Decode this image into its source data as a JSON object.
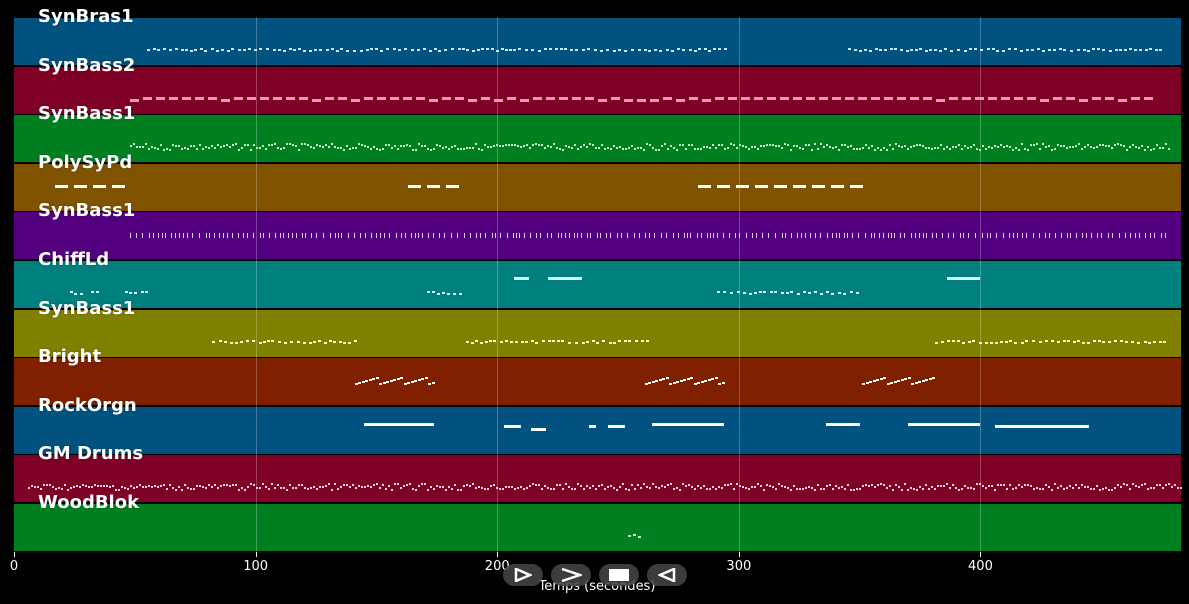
{
  "window": {
    "background": "#000000"
  },
  "axis": {
    "xlabel": "Temps (secondes)",
    "xlim": [
      0,
      483
    ],
    "ticks": [
      {
        "value": 0,
        "label": "0"
      },
      {
        "value": 100,
        "label": "100"
      },
      {
        "value": 200,
        "label": "200"
      },
      {
        "value": 300,
        "label": "300"
      },
      {
        "value": 400,
        "label": "400"
      }
    ]
  },
  "controls": [
    {
      "name": "play-icon",
      "label": "play"
    },
    {
      "name": "forward-icon",
      "label": "forward"
    },
    {
      "name": "stop-icon",
      "label": "stop"
    },
    {
      "name": "rewind-icon",
      "label": "rewind"
    }
  ],
  "tracks": [
    {
      "name": "SynBras1",
      "color": "#01527f",
      "note_color": "#c8e6ff",
      "segments": [
        [
          55,
          295,
          "dots"
        ],
        [
          345,
          475,
          "dots"
        ]
      ]
    },
    {
      "name": "SynBass2",
      "color": "#7f0026",
      "note_color": "#e89ab0",
      "segments": [
        [
          48,
          470,
          "dashes"
        ]
      ]
    },
    {
      "name": "SynBass1",
      "color": "#007f21",
      "note_color": "#c8f0c8",
      "segments": [
        [
          48,
          478,
          "dense"
        ]
      ]
    },
    {
      "name": "PolySyPd",
      "color": "#7f5300",
      "note_color": "#ffffff",
      "segments": [
        [
          17,
          47,
          "dashes-bold"
        ],
        [
          163,
          185,
          "dashes-bold"
        ],
        [
          283,
          350,
          "dashes-bold"
        ]
      ]
    },
    {
      "name": "SynBass1",
      "color": "#52007f",
      "note_color": "#e6ccff",
      "segments": [
        [
          48,
          478,
          "ticks"
        ]
      ]
    },
    {
      "name": "ChiffLd",
      "color": "#007f7f",
      "note_color": "#d0ffff",
      "segments": [
        [
          23,
          28,
          "dots"
        ],
        [
          32,
          36,
          "dots"
        ],
        [
          46,
          55,
          "dots"
        ],
        [
          171,
          186,
          "dots"
        ],
        [
          207,
          213,
          "bar"
        ],
        [
          221,
          235,
          "bar"
        ],
        [
          291,
          351,
          "dots"
        ],
        [
          386,
          400,
          "bar"
        ]
      ]
    },
    {
      "name": "SynBass1",
      "color": "#7f7f00",
      "note_color": "#fff8c0",
      "segments": [
        [
          82,
          141,
          "dots"
        ],
        [
          187,
          262,
          "dots"
        ],
        [
          381,
          476,
          "dots"
        ]
      ]
    },
    {
      "name": "Bright",
      "color": "#7f2100",
      "note_color": "#ffffff",
      "segments": [
        [
          141,
          174,
          "stairs"
        ],
        [
          261,
          293,
          "stairs"
        ],
        [
          351,
          381,
          "stairs"
        ]
      ]
    },
    {
      "name": "RockOrgn",
      "color": "#01527f",
      "note_color": "#ffffff",
      "segments": [
        [
          145,
          174,
          "bar"
        ],
        [
          203,
          210,
          "bar-low"
        ],
        [
          214,
          220,
          "bar-lower"
        ],
        [
          238,
          241,
          "bar-low"
        ],
        [
          246,
          253,
          "bar-low"
        ],
        [
          264,
          294,
          "bar"
        ],
        [
          336,
          350,
          "bar"
        ],
        [
          370,
          400,
          "bar"
        ],
        [
          406,
          445,
          "bar-low"
        ]
      ]
    },
    {
      "name": "GM Drums",
      "color": "#7f0026",
      "note_color": "#ffd0e0",
      "segments": [
        [
          6,
          483,
          "dense"
        ]
      ]
    },
    {
      "name": "WoodBlok",
      "color": "#007f21",
      "note_color": "#c8f0c8",
      "segments": [
        [
          254,
          260,
          "dots"
        ]
      ]
    }
  ]
}
